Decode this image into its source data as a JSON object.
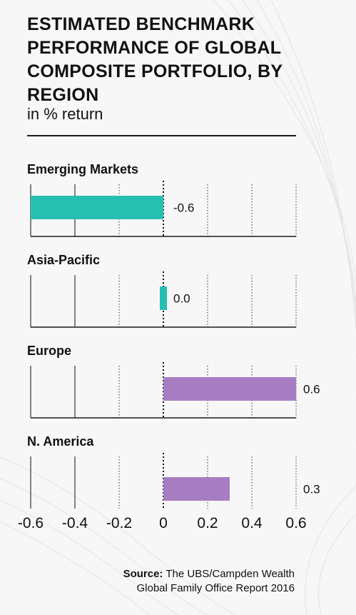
{
  "title": "ESTIMATED BENCHMARK PERFORMANCE OF GLOBAL COMPOSITE PORTFOLIO, BY REGION",
  "subtitle": "in % return",
  "source": {
    "label": "Source:",
    "text_line1": "The UBS/Campden Wealth",
    "text_line2": "Global Family Office Report 2016"
  },
  "chart_data": {
    "type": "bar",
    "orientation": "horizontal",
    "title": "ESTIMATED BENCHMARK PERFORMANCE OF GLOBAL COMPOSITE PORTFOLIO, BY REGION",
    "subtitle": "in % return",
    "categories": [
      "Emerging Markets",
      "Asia-Pacific",
      "Europe",
      "N. America"
    ],
    "values": [
      -0.6,
      0.0,
      0.6,
      0.3
    ],
    "value_labels": [
      "-0.6",
      "0.0",
      "0.6",
      "0.3"
    ],
    "bar_colors": [
      "#26bfb0",
      "#26bfb0",
      "#a77dc2",
      "#a77dc2"
    ],
    "xlim": [
      -0.6,
      0.6
    ],
    "x_ticks": [
      -0.6,
      -0.4,
      -0.2,
      0,
      0.2,
      0.4,
      0.6
    ],
    "x_tick_labels": [
      "-0.6",
      "-0.4",
      "-0.2",
      "0",
      "0.2",
      "0.4",
      "0.6"
    ],
    "zero_line": "dotted",
    "grid": true
  }
}
